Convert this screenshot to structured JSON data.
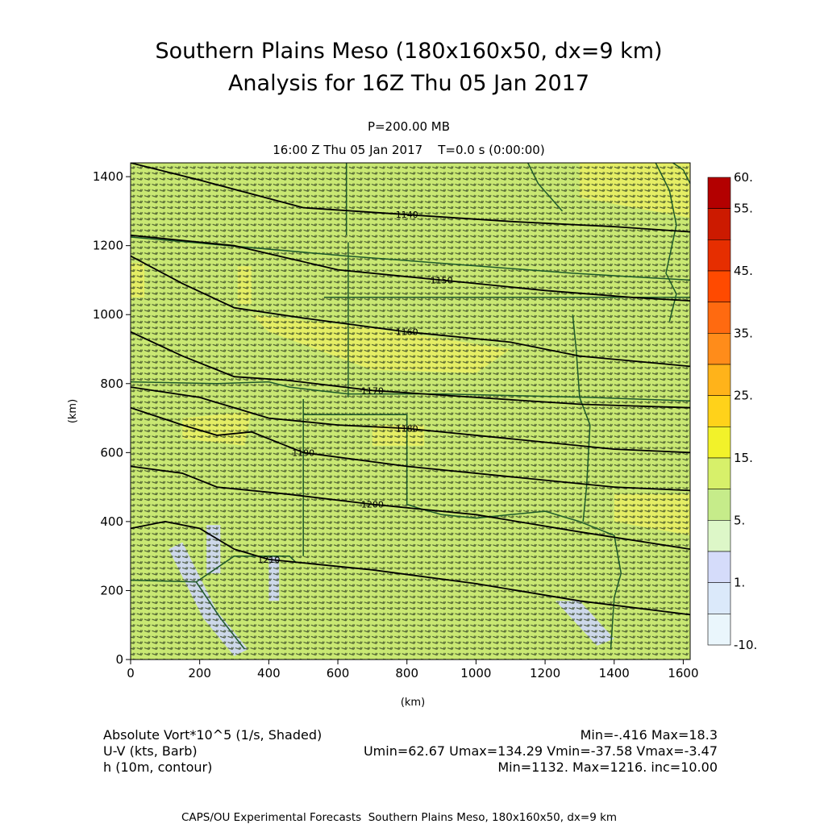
{
  "header": {
    "title_line1": "Southern Plains Meso (180x160x50, dx=9 km)",
    "title_line2": "Analysis for 16Z Thu 05 Jan 2017",
    "level": "P=200.00 MB",
    "time_line": "16:00 Z Thu 05 Jan 2017    T=0.0 s (0:00:00)"
  },
  "colors": {
    "field_base": "#c9e873",
    "field_light": "#d9f09a",
    "field_yellow": "#eef060",
    "field_low": "#cdd6f7",
    "barb": "#2f3f20",
    "contour": "#000000",
    "border": "#1f5a2a"
  },
  "chart_data": {
    "type": "heatmap",
    "xlabel": "(km)",
    "ylabel": "(km)",
    "xlim": [
      0,
      1620
    ],
    "ylim": [
      0,
      1440
    ],
    "x_ticks": [
      "0",
      "200",
      "400",
      "600",
      "800",
      "1000",
      "1200",
      "1400",
      "1600"
    ],
    "y_ticks": [
      "0",
      "200",
      "400",
      "600",
      "800",
      "1000",
      "1200",
      "1400"
    ],
    "colorbar": {
      "labels": [
        "60.",
        "55.",
        "45.",
        "35.",
        "25.",
        "15.",
        "5.",
        "1.",
        "-10."
      ],
      "colors": [
        "#b30000",
        "#cc1a00",
        "#e62e00",
        "#ff4a00",
        "#ff6a10",
        "#ff8c1a",
        "#ffb31a",
        "#ffd21a",
        "#f2f22a",
        "#d7f06a",
        "#c6ec8a",
        "#ddf7c8",
        "#d5dcfa",
        "#dbe9fa",
        "#eaf6fc"
      ]
    },
    "contours": [
      {
        "label": "1140",
        "pts": [
          [
            0,
            1440
          ],
          [
            200,
            1390
          ],
          [
            500,
            1310
          ],
          [
            800,
            1290
          ],
          [
            1100,
            1270
          ],
          [
            1400,
            1255
          ],
          [
            1620,
            1240
          ]
        ]
      },
      {
        "label": "1150",
        "pts": [
          [
            0,
            1230
          ],
          [
            300,
            1200
          ],
          [
            600,
            1130
          ],
          [
            900,
            1100
          ],
          [
            1200,
            1070
          ],
          [
            1450,
            1050
          ],
          [
            1620,
            1040
          ]
        ]
      },
      {
        "label": "1160",
        "pts": [
          [
            0,
            1170
          ],
          [
            150,
            1090
          ],
          [
            300,
            1020
          ],
          [
            500,
            990
          ],
          [
            800,
            950
          ],
          [
            1100,
            920
          ],
          [
            1300,
            880
          ],
          [
            1620,
            850
          ]
        ]
      },
      {
        "label": "1170",
        "pts": [
          [
            0,
            950
          ],
          [
            150,
            880
          ],
          [
            300,
            820
          ],
          [
            450,
            810
          ],
          [
            700,
            780
          ],
          [
            1000,
            760
          ],
          [
            1300,
            740
          ],
          [
            1620,
            730
          ]
        ]
      },
      {
        "label": "1180",
        "pts": [
          [
            0,
            790
          ],
          [
            200,
            760
          ],
          [
            400,
            700
          ],
          [
            600,
            680
          ],
          [
            800,
            670
          ],
          [
            1100,
            640
          ],
          [
            1400,
            610
          ],
          [
            1620,
            600
          ]
        ]
      },
      {
        "label": "1190",
        "pts": [
          [
            0,
            730
          ],
          [
            150,
            680
          ],
          [
            250,
            650
          ],
          [
            350,
            660
          ],
          [
            500,
            600
          ],
          [
            800,
            560
          ],
          [
            1100,
            530
          ],
          [
            1400,
            500
          ],
          [
            1620,
            490
          ]
        ]
      },
      {
        "label": "1200",
        "pts": [
          [
            0,
            560
          ],
          [
            150,
            540
          ],
          [
            250,
            500
          ],
          [
            450,
            480
          ],
          [
            700,
            450
          ],
          [
            1000,
            420
          ],
          [
            1300,
            370
          ],
          [
            1620,
            320
          ]
        ]
      },
      {
        "label": "1210",
        "pts": [
          [
            0,
            380
          ],
          [
            100,
            400
          ],
          [
            200,
            380
          ],
          [
            300,
            320
          ],
          [
            400,
            290
          ],
          [
            700,
            260
          ],
          [
            1000,
            220
          ],
          [
            1300,
            170
          ],
          [
            1620,
            130
          ]
        ]
      }
    ],
    "shading_regions": [
      {
        "level": "15.",
        "pts": [
          [
            0,
            1150
          ],
          [
            40,
            1150
          ],
          [
            40,
            1050
          ],
          [
            0,
            1050
          ]
        ]
      },
      {
        "level": "15.",
        "pts": [
          [
            310,
            1140
          ],
          [
            350,
            1140
          ],
          [
            350,
            1030
          ],
          [
            310,
            1030
          ]
        ]
      },
      {
        "level": "15.",
        "pts": [
          [
            350,
            1000
          ],
          [
            700,
            960
          ],
          [
            1100,
            900
          ],
          [
            1000,
            830
          ],
          [
            700,
            840
          ],
          [
            400,
            950
          ]
        ]
      },
      {
        "level": "15.",
        "pts": [
          [
            1300,
            1440
          ],
          [
            1620,
            1440
          ],
          [
            1620,
            1280
          ],
          [
            1300,
            1340
          ]
        ]
      },
      {
        "level": "15.",
        "pts": [
          [
            150,
            700
          ],
          [
            350,
            720
          ],
          [
            330,
            620
          ],
          [
            150,
            640
          ]
        ]
      },
      {
        "level": "15.",
        "pts": [
          [
            700,
            680
          ],
          [
            850,
            680
          ],
          [
            850,
            620
          ],
          [
            700,
            620
          ]
        ]
      },
      {
        "level": "15.",
        "pts": [
          [
            1400,
            480
          ],
          [
            1620,
            480
          ],
          [
            1620,
            360
          ],
          [
            1400,
            400
          ]
        ]
      },
      {
        "level": "1.",
        "pts": [
          [
            110,
            320
          ],
          [
            150,
            340
          ],
          [
            250,
            140
          ],
          [
            340,
            30
          ],
          [
            300,
            10
          ],
          [
            210,
            120
          ]
        ]
      },
      {
        "level": "1.",
        "pts": [
          [
            220,
            390
          ],
          [
            260,
            390
          ],
          [
            260,
            250
          ],
          [
            220,
            250
          ]
        ]
      },
      {
        "level": "1.",
        "pts": [
          [
            400,
            300
          ],
          [
            430,
            300
          ],
          [
            430,
            170
          ],
          [
            400,
            170
          ]
        ]
      },
      {
        "level": "1.",
        "pts": [
          [
            1230,
            170
          ],
          [
            1300,
            170
          ],
          [
            1400,
            60
          ],
          [
            1350,
            40
          ]
        ]
      }
    ],
    "borders": [
      {
        "pts": [
          [
            0,
            1225
          ],
          [
            625,
            1170
          ],
          [
            1280,
            1120
          ],
          [
            1450,
            1110
          ],
          [
            1620,
            1100
          ]
        ]
      },
      {
        "pts": [
          [
            625,
            1440
          ],
          [
            625,
            1230
          ]
        ]
      },
      {
        "pts": [
          [
            0,
            805
          ],
          [
            250,
            800
          ],
          [
            400,
            805
          ],
          [
            460,
            790
          ],
          [
            540,
            780
          ],
          [
            630,
            770
          ],
          [
            900,
            770
          ],
          [
            1330,
            760
          ],
          [
            1620,
            750
          ]
        ]
      },
      {
        "pts": [
          [
            630,
            1210
          ],
          [
            630,
            760
          ]
        ]
      },
      {
        "pts": [
          [
            560,
            1050
          ],
          [
            1620,
            1050
          ]
        ]
      },
      {
        "pts": [
          [
            500,
            755
          ],
          [
            500,
            300
          ]
        ]
      },
      {
        "pts": [
          [
            500,
            710
          ],
          [
            800,
            710
          ],
          [
            800,
            450
          ],
          [
            830,
            440
          ],
          [
            900,
            420
          ],
          [
            1000,
            410
          ],
          [
            1100,
            420
          ],
          [
            1200,
            430
          ],
          [
            1300,
            400
          ]
        ]
      },
      {
        "pts": [
          [
            1280,
            1000
          ],
          [
            1290,
            900
          ],
          [
            1300,
            760
          ],
          [
            1330,
            680
          ],
          [
            1320,
            500
          ],
          [
            1310,
            400
          ]
        ]
      },
      {
        "pts": [
          [
            1300,
            400
          ],
          [
            1400,
            360
          ],
          [
            1420,
            250
          ],
          [
            1400,
            180
          ],
          [
            1390,
            30
          ]
        ]
      },
      {
        "pts": [
          [
            0,
            230
          ],
          [
            190,
            225
          ],
          [
            300,
            300
          ],
          [
            460,
            300
          ],
          [
            480,
            280
          ]
        ]
      },
      {
        "pts": [
          [
            190,
            225
          ],
          [
            260,
            120
          ],
          [
            330,
            30
          ]
        ]
      },
      {
        "pts": [
          [
            1150,
            1440
          ],
          [
            1180,
            1380
          ],
          [
            1250,
            1300
          ]
        ]
      },
      {
        "pts": [
          [
            1520,
            1440
          ],
          [
            1560,
            1360
          ],
          [
            1580,
            1260
          ],
          [
            1550,
            1120
          ],
          [
            1580,
            1060
          ],
          [
            1560,
            980
          ]
        ]
      },
      {
        "pts": [
          [
            1620,
            1380
          ],
          [
            1600,
            1420
          ],
          [
            1570,
            1440
          ]
        ]
      }
    ]
  },
  "footer": {
    "row1_left": "Absolute Vort*10^5 (1/s, Shaded)",
    "row1_right": "Min=-.416 Max=18.3",
    "row2_left": "U-V (kts, Barb)",
    "row2_right": "Umin=62.67 Umax=134.29 Vmin=-37.58 Vmax=-3.47",
    "row3_left": "h (10m, contour)",
    "row3_right": "Min=1132. Max=1216. inc=10.00",
    "credit": "CAPS/OU Experimental Forecasts  Southern Plains Meso, 180x160x50, dx=9 km"
  }
}
